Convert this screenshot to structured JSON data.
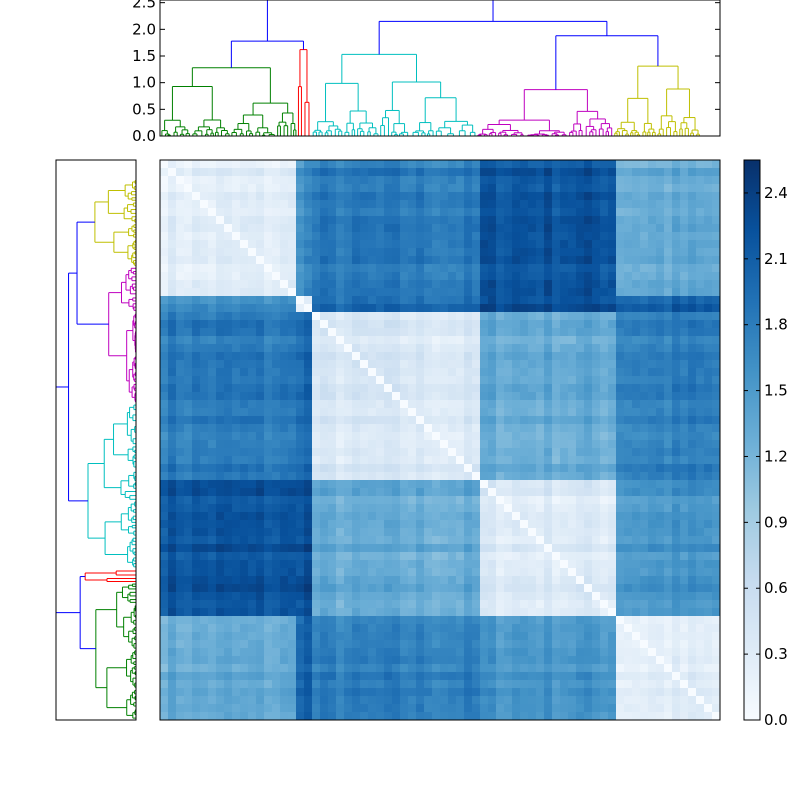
{
  "chart_data": {
    "type": "heatmap",
    "title": "",
    "colormap": {
      "name": "Blues",
      "stops": [
        "#f7fbff",
        "#deebf7",
        "#c6dbef",
        "#9ecae1",
        "#6baed6",
        "#4292c6",
        "#2171b5",
        "#08519c",
        "#08306b"
      ]
    },
    "value_range": [
      0.0,
      2.55
    ],
    "colorbar": {
      "ticks": [
        0.0,
        0.3,
        0.6,
        0.9,
        1.2,
        1.5,
        1.8,
        2.1,
        2.4
      ],
      "tick_labels": [
        "0.0",
        "0.3",
        "0.6",
        "0.9",
        "1.2",
        "1.5",
        "1.8",
        "2.1",
        "2.4"
      ]
    },
    "top_dendrogram": {
      "ylim": [
        0,
        2.55
      ],
      "ticks": [
        0.0,
        0.5,
        1.0,
        1.5,
        2.0,
        2.5
      ],
      "tick_labels": [
        "0.0",
        "0.5",
        "1.0",
        "1.5",
        "2.0",
        "2.5"
      ],
      "root_height": 2.55,
      "colors": {
        "link": "#0000ff",
        "c1": "#008000",
        "c2": "#ff0000",
        "c3": "#00bfbf",
        "c4": "#bf00bf",
        "c5": "#bfbf00"
      },
      "clusters": [
        {
          "color": "c1",
          "fraction": 0.245,
          "height": 1.28
        },
        {
          "color": "c2",
          "fraction": 0.025,
          "height": 1.62
        },
        {
          "color": "c3",
          "fraction": 0.295,
          "height": 1.53
        },
        {
          "color": "c4",
          "fraction": 0.245,
          "height": 0.87
        },
        {
          "color": "c5",
          "fraction": 0.155,
          "height": 1.31
        }
      ],
      "merges": [
        {
          "between": [
            1,
            2
          ],
          "height": 1.78
        },
        {
          "between": [
            4,
            5
          ],
          "height": 1.88
        },
        {
          "between": [
            3,
            4
          ],
          "height": 2.15
        },
        {
          "between": [
            "1-2",
            "3-5"
          ],
          "height": 2.55
        }
      ]
    },
    "left_dendrogram": {
      "orientation": "left",
      "order_top_to_bottom": [
        "c5",
        "c4",
        "c3",
        "c2",
        "c1"
      ]
    },
    "block_order": [
      "c1",
      "c2",
      "c3",
      "c4",
      "c5"
    ],
    "block_fractions": [
      0.245,
      0.025,
      0.295,
      0.245,
      0.155
    ],
    "block_distances": [
      [
        0.25,
        1.65,
        1.8,
        2.2,
        1.3
      ],
      [
        1.65,
        0.3,
        2.0,
        2.3,
        2.1
      ],
      [
        1.8,
        2.0,
        0.35,
        1.3,
        1.75
      ],
      [
        2.2,
        2.3,
        1.3,
        0.35,
        1.55
      ],
      [
        1.3,
        2.1,
        1.75,
        1.55,
        0.25
      ]
    ]
  }
}
